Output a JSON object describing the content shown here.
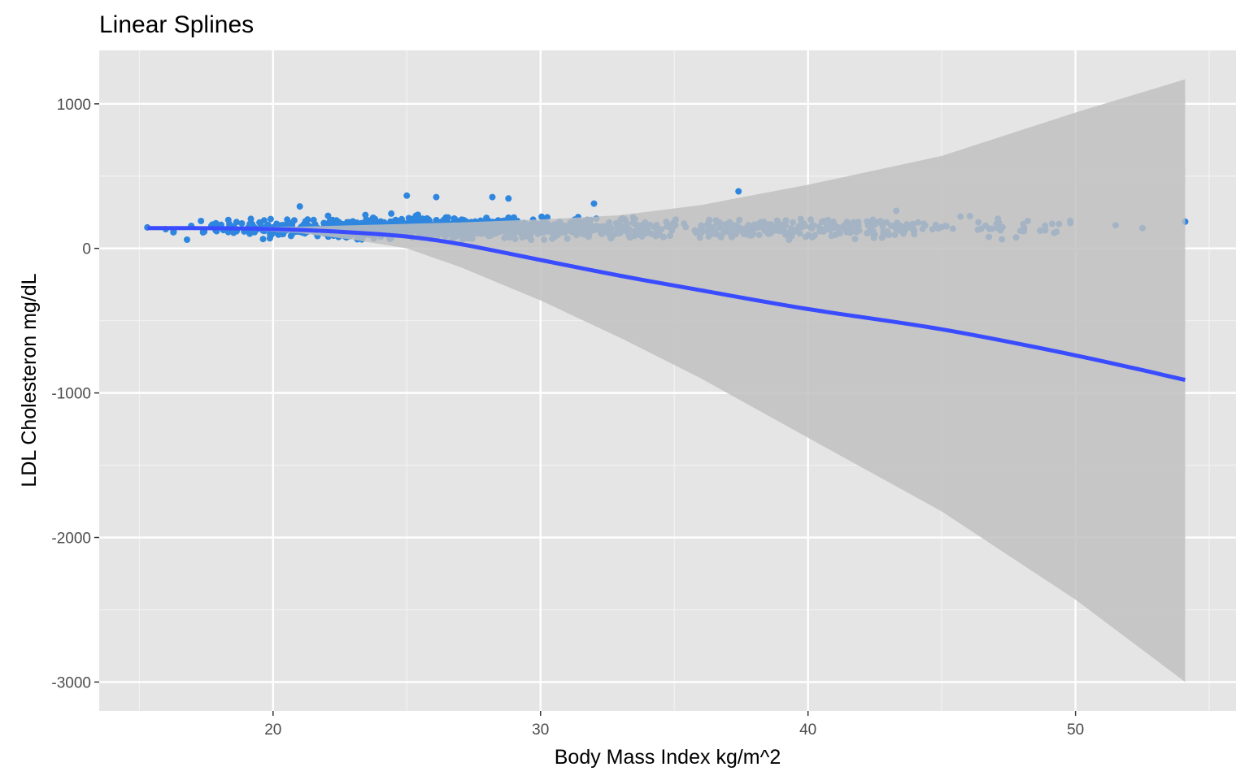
{
  "chart_data": {
    "type": "scatter",
    "title": "Linear Splines",
    "xlabel": "Body Mass Index kg/m^2",
    "ylabel": "LDL Cholesteron mg/dL",
    "xlim": [
      13.5,
      56.0
    ],
    "ylim": [
      -3200,
      1370
    ],
    "x_ticks": [
      20,
      30,
      40,
      50
    ],
    "x_tick_labels": [
      "20",
      "30",
      "40",
      "50"
    ],
    "y_ticks": [
      1000,
      0,
      -1000,
      -2000,
      -3000
    ],
    "y_tick_labels": [
      "1000",
      "0",
      "-1000",
      "-2000",
      "-3000"
    ],
    "grid": true,
    "legend": "none",
    "colors": {
      "panel": "#e5e5e5",
      "grid_major": "#ffffff",
      "grid_minor": "#f2f2f2",
      "points": "#2e86de",
      "fit_line": "#3a4cff",
      "ribbon": "#bebebe"
    },
    "fit_line": {
      "x": [
        15.3,
        17,
        19,
        21,
        23,
        25,
        27,
        30,
        33,
        36,
        40,
        45,
        50,
        54.1
      ],
      "y": [
        140,
        140,
        137,
        128,
        110,
        82,
        30,
        -80,
        -190,
        -290,
        -420,
        -560,
        -740,
        -910
      ]
    },
    "confidence_band": {
      "x": [
        15.3,
        17,
        19,
        21,
        23,
        25,
        27,
        30,
        33,
        36,
        40,
        45,
        50,
        54.1
      ],
      "upper": [
        155,
        150,
        148,
        150,
        160,
        170,
        180,
        200,
        230,
        300,
        440,
        640,
        940,
        1170
      ],
      "lower": [
        125,
        130,
        126,
        106,
        60,
        0,
        -130,
        -360,
        -620,
        -900,
        -1310,
        -1820,
        -2430,
        -3000
      ]
    },
    "outliers": {
      "x": [
        25,
        26.1,
        28.2,
        28.8,
        37.4,
        32,
        21,
        45.7,
        47.1,
        51.5,
        52.5,
        54.1,
        43.3,
        49.8
      ],
      "y": [
        365,
        355,
        355,
        345,
        395,
        310,
        290,
        220,
        205,
        160,
        140,
        185,
        260,
        190
      ]
    }
  }
}
